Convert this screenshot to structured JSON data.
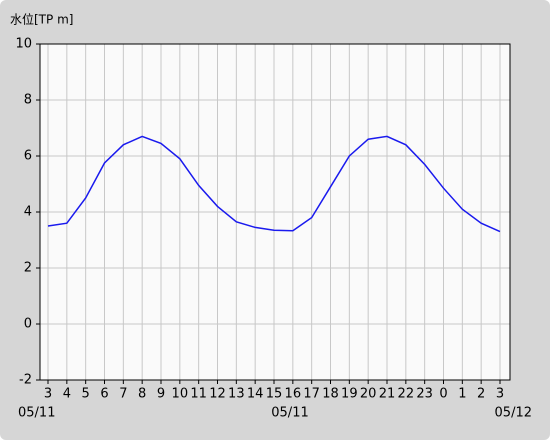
{
  "chart_data": {
    "type": "line",
    "y_axis_label": "水位[TP m]",
    "categories": [
      "3",
      "4",
      "5",
      "6",
      "7",
      "8",
      "9",
      "10",
      "11",
      "12",
      "13",
      "14",
      "15",
      "16",
      "17",
      "18",
      "19",
      "20",
      "21",
      "22",
      "23",
      "0",
      "1",
      "2",
      "3"
    ],
    "date_labels": [
      "05/11",
      "05/11",
      "05/12"
    ],
    "series": [
      {
        "color": "#1a1aee",
        "values": [
          3.5,
          3.6,
          4.5,
          5.75,
          6.4,
          6.7,
          6.45,
          5.9,
          4.95,
          4.2,
          3.65,
          3.45,
          3.35,
          3.33,
          3.8,
          4.9,
          6.0,
          6.6,
          6.7,
          6.4,
          5.7,
          4.85,
          4.1,
          3.6,
          3.3
        ]
      }
    ],
    "ylim": [
      -2,
      10
    ],
    "yticks": [
      -2,
      0,
      2,
      4,
      6,
      8,
      10
    ],
    "grid": true
  }
}
